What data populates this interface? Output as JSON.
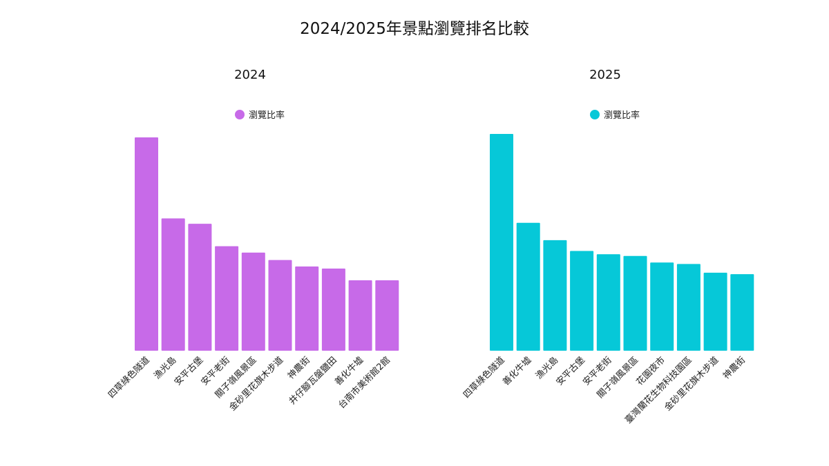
{
  "title": "2024/2025年景點瀏覽排名比較",
  "chart_data": [
    {
      "type": "bar",
      "title": "2024",
      "legend": {
        "label": "瀏覽比率",
        "position": "top-center"
      },
      "color": "#c76ae8",
      "categories": [
        "四草綠色隧道",
        "漁光島",
        "安平古堡",
        "安平老街",
        "關子嶺風景區",
        "金砂里花旗木步道",
        "神農街",
        "井仔腳瓦盤鹽田",
        "善化牛墟",
        "台南市美術館2館"
      ],
      "series": [
        {
          "name": "瀏覽比率",
          "values": [
            100,
            62,
            59.5,
            49,
            46,
            42.5,
            39.5,
            38.5,
            33,
            33
          ]
        }
      ],
      "ylim": [
        0,
        100
      ],
      "grid": false
    },
    {
      "type": "bar",
      "title": "2025",
      "legend": {
        "label": "瀏覽比率",
        "position": "top-center"
      },
      "color": "#06c8d8",
      "categories": [
        "四草綠色隧道",
        "善化牛墟",
        "漁光島",
        "安平古堡",
        "安平老街",
        "關子嶺風景區",
        "花園夜市",
        "臺灣蘭花生物科技園區",
        "金砂里花旗木步道",
        "神農街"
      ],
      "series": [
        {
          "name": "瀏覽比率",
          "values": [
            100,
            59,
            51,
            46,
            44.5,
            43.7,
            40.7,
            40,
            36,
            35.3
          ]
        }
      ],
      "ylim": [
        0,
        100
      ],
      "grid": false
    }
  ]
}
